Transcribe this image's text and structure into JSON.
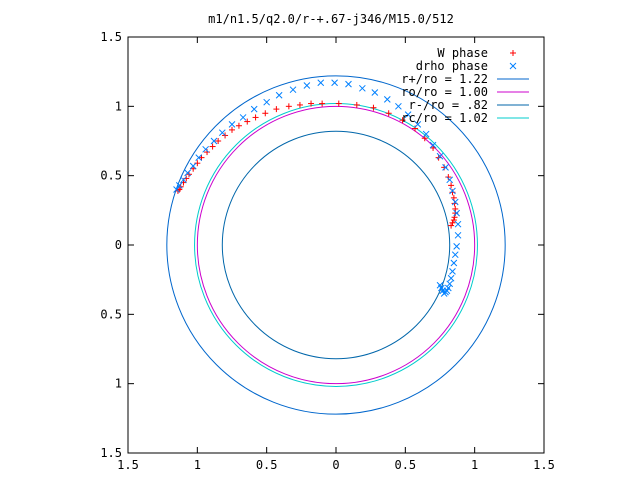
{
  "chart_data": {
    "type": "scatter",
    "title": "m1/n1.5/q2.0/r-+.67-j346/M15.0/512",
    "xlabel": "",
    "ylabel": "",
    "xlim": [
      -1.5,
      1.5
    ],
    "ylim": [
      -1.5,
      1.5
    ],
    "x_tick_labels": [
      "1.5",
      "1",
      "0.5",
      "0",
      "0.5",
      "1",
      "1.5"
    ],
    "x_tick_values": [
      -1.5,
      -1,
      -0.5,
      0,
      0.5,
      1,
      1.5
    ],
    "y_tick_labels": [
      "1.5",
      "1",
      "0.5",
      "0",
      "0.5",
      "1",
      "1.5"
    ],
    "y_tick_values": [
      1.5,
      1,
      0.5,
      0,
      -0.5,
      -1,
      -1.5
    ],
    "grid": false,
    "legend_position": "top-right",
    "series": [
      {
        "name": "W phase",
        "kind": "points",
        "marker": "plus",
        "color": "#ff0000",
        "x": [
          -1.14,
          -1.13,
          -1.12,
          -1.1,
          -1.08,
          -1.06,
          -1.03,
          -1.0,
          -0.97,
          -0.93,
          -0.89,
          -0.85,
          -0.8,
          -0.75,
          -0.7,
          -0.64,
          -0.58,
          -0.51,
          -0.43,
          -0.34,
          -0.26,
          -0.18,
          -0.1,
          0.02,
          0.15,
          0.27,
          0.38,
          0.48,
          0.57,
          0.64,
          0.7,
          0.74,
          0.78,
          0.81,
          0.83,
          0.84,
          0.85,
          0.855,
          0.86,
          0.86,
          0.855,
          0.85,
          0.84,
          0.83
        ],
        "y": [
          0.39,
          0.4,
          0.42,
          0.45,
          0.48,
          0.51,
          0.55,
          0.59,
          0.63,
          0.67,
          0.71,
          0.75,
          0.79,
          0.83,
          0.86,
          0.89,
          0.92,
          0.95,
          0.98,
          1.0,
          1.01,
          1.02,
          1.02,
          1.02,
          1.01,
          0.99,
          0.95,
          0.9,
          0.84,
          0.77,
          0.7,
          0.63,
          0.56,
          0.49,
          0.43,
          0.38,
          0.34,
          0.3,
          0.26,
          0.23,
          0.2,
          0.18,
          0.16,
          0.14
        ]
      },
      {
        "name": "drho phase",
        "kind": "points",
        "marker": "cross",
        "color": "#0080ff",
        "x": [
          -1.15,
          -1.13,
          -1.1,
          -1.07,
          -1.03,
          -0.99,
          -0.94,
          -0.88,
          -0.82,
          -0.75,
          -0.67,
          -0.59,
          -0.5,
          -0.41,
          -0.31,
          -0.21,
          -0.11,
          -0.01,
          0.09,
          0.19,
          0.28,
          0.37,
          0.45,
          0.52,
          0.59,
          0.65,
          0.7,
          0.75,
          0.79,
          0.82,
          0.84,
          0.86,
          0.87,
          0.88,
          0.88,
          0.87,
          0.86,
          0.85,
          0.84,
          0.83,
          0.82,
          0.81,
          0.8,
          0.79,
          0.78,
          0.77,
          0.76,
          0.75
        ],
        "y": [
          0.4,
          0.43,
          0.47,
          0.52,
          0.57,
          0.63,
          0.69,
          0.75,
          0.81,
          0.87,
          0.92,
          0.98,
          1.03,
          1.08,
          1.12,
          1.15,
          1.17,
          1.17,
          1.16,
          1.13,
          1.1,
          1.05,
          1.0,
          0.94,
          0.87,
          0.8,
          0.72,
          0.64,
          0.56,
          0.47,
          0.39,
          0.31,
          0.23,
          0.15,
          0.07,
          -0.01,
          -0.07,
          -0.13,
          -0.19,
          -0.24,
          -0.28,
          -0.31,
          -0.33,
          -0.34,
          -0.35,
          -0.33,
          -0.31,
          -0.29
        ]
      },
      {
        "name": "r+/ro = 1.22",
        "kind": "circle",
        "r": 1.22,
        "color": "#0066cc"
      },
      {
        "name": "ro/ro = 1.00",
        "kind": "circle",
        "r": 1.0,
        "color": "#cc00cc"
      },
      {
        "name": "r-/ro = .82",
        "kind": "circle",
        "r": 0.82,
        "color": "#0066aa"
      },
      {
        "name": "rc/ro = 1.02",
        "kind": "circle",
        "r": 1.02,
        "color": "#00cccc"
      }
    ]
  }
}
